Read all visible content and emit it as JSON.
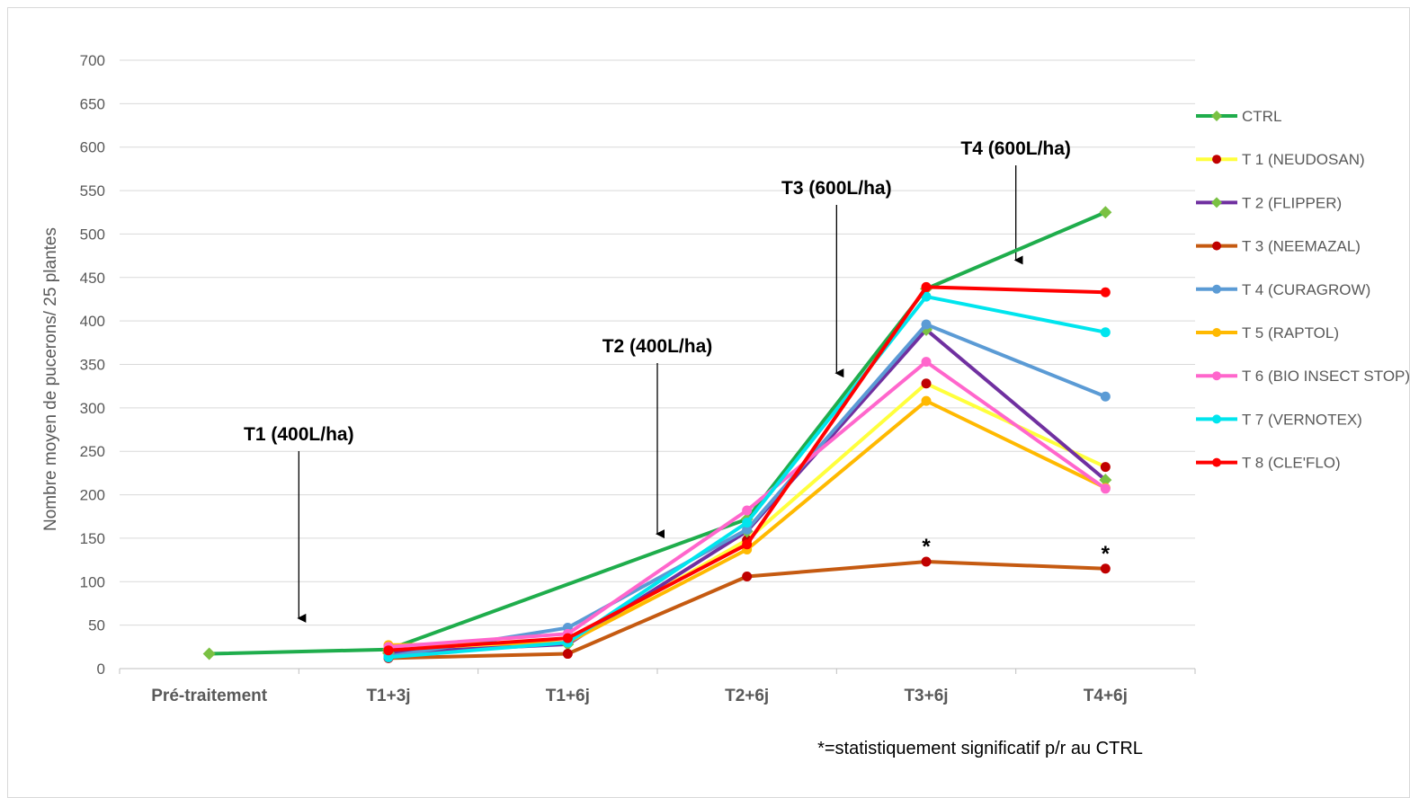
{
  "chart_data": {
    "type": "line",
    "title": "",
    "xlabel": "",
    "ylabel": "Nombre moyen de pucerons/ 25 plantes",
    "ylim": [
      0,
      700
    ],
    "yticks": [
      0,
      50,
      100,
      150,
      200,
      250,
      300,
      350,
      400,
      450,
      500,
      550,
      600,
      650,
      700
    ],
    "categories": [
      "Pré-traitement",
      "T1+3j",
      "T1+6j",
      "T2+6j",
      "T3+6j",
      "T4+6j"
    ],
    "grid": "horizontal",
    "legend_position": "right",
    "series": [
      {
        "name": "CTRL",
        "color": "#1fad4c",
        "marker_color": "#7ac143",
        "marker": "diamond",
        "values": [
          17,
          22,
          null,
          172,
          437,
          525
        ]
      },
      {
        "name": "T 1 (NEUDOSAN)",
        "color": "#ffff3c",
        "marker_color": "#c00000",
        "marker": "circle",
        "values": [
          null,
          18,
          30,
          148,
          328,
          232
        ]
      },
      {
        "name": "T 2 (FLIPPER)",
        "color": "#7030a0",
        "marker_color": "#7ac143",
        "marker": "diamond",
        "values": [
          null,
          18,
          28,
          158,
          390,
          217
        ]
      },
      {
        "name": "T 3 (NEEMAZAL)",
        "color": "#c55a11",
        "marker_color": "#c00000",
        "marker": "circle",
        "values": [
          null,
          12,
          17,
          106,
          123,
          115
        ]
      },
      {
        "name": "T 4 (CURAGROW)",
        "color": "#5b9bd5",
        "marker_color": "#5b9bd5",
        "marker": "circle",
        "values": [
          null,
          14,
          47,
          160,
          396,
          313
        ]
      },
      {
        "name": "T 5 (RAPTOL)",
        "color": "#ffb900",
        "marker_color": "#ffb900",
        "marker": "circle",
        "values": [
          null,
          27,
          30,
          137,
          308,
          208
        ]
      },
      {
        "name": "T 6 (BIO INSECT STOP)",
        "color": "#ff66cc",
        "marker_color": "#ff66cc",
        "marker": "circle",
        "values": [
          null,
          25,
          40,
          182,
          353,
          207
        ]
      },
      {
        "name": "T 7 (VERNOTEX)",
        "color": "#00e5ee",
        "marker_color": "#00e5ee",
        "marker": "circle",
        "values": [
          null,
          13,
          30,
          168,
          428,
          387
        ]
      },
      {
        "name": "T 8 (CLE'FLO)",
        "color": "#ff0000",
        "marker_color": "#ff0000",
        "marker": "circle",
        "values": [
          null,
          21,
          35,
          143,
          439,
          433
        ]
      }
    ],
    "annotations": [
      {
        "text": "T1 (400L/ha)",
        "x_between": [
          0,
          1
        ],
        "arrow_to": 58
      },
      {
        "text": "T2 (400L/ha)",
        "x_between": [
          2,
          3
        ],
        "arrow_to": 155
      },
      {
        "text": "T3 (600L/ha)",
        "x_between": [
          3,
          4
        ],
        "arrow_to": 340
      },
      {
        "text": "T4 (600L/ha)",
        "x_between": [
          4,
          5
        ],
        "arrow_to": 470
      }
    ],
    "significance": [
      {
        "text": "*",
        "category": "T3+6j",
        "series": "T 3 (NEEMAZAL)"
      },
      {
        "text": "*",
        "category": "T4+6j",
        "series": "T 3 (NEEMAZAL)"
      }
    ],
    "footnote": "*=statistiquement significatif p/r au CTRL"
  }
}
